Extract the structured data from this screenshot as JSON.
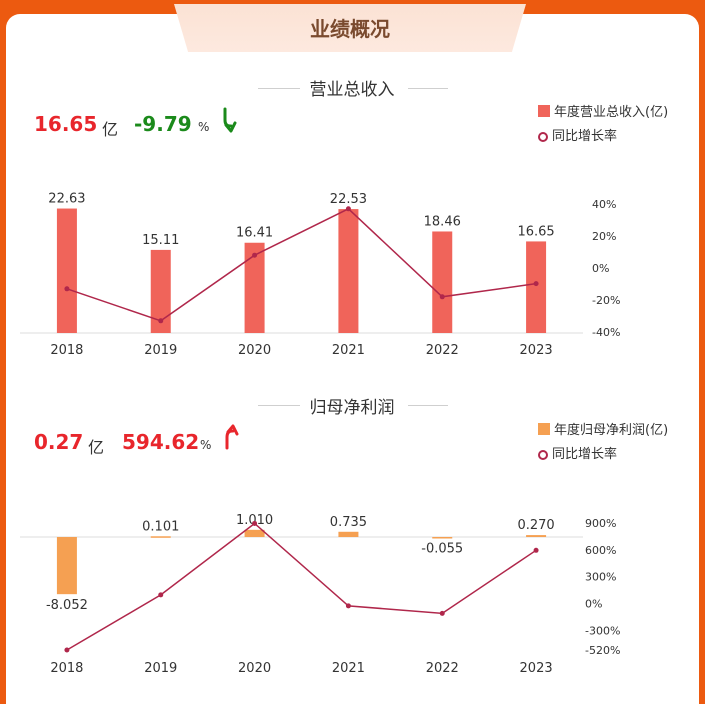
{
  "header": {
    "title": "业绩概况"
  },
  "revenue": {
    "section_title": "营业总收入",
    "value": "16.65",
    "unit": "亿",
    "change": "-9.79",
    "change_unit": "%",
    "legend_bar": "年度营业总收入(亿)",
    "legend_line": "同比增长率"
  },
  "profit": {
    "section_title": "归母净利润",
    "value": "0.27",
    "unit": "亿",
    "change": "594.62",
    "change_unit": "%",
    "legend_bar": "年度归母净利润(亿)",
    "legend_line": "同比增长率"
  },
  "colors": {
    "revenue_bar": "#f0645a",
    "profit_bar": "#f5a052",
    "growth_line": "#b0274b",
    "positive": "#e8262c",
    "negative": "#1b8a1b"
  },
  "chart_data": [
    {
      "type": "bar",
      "categories": [
        "2018",
        "2019",
        "2020",
        "2021",
        "2022",
        "2023"
      ],
      "series": [
        {
          "name": "年度营业总收入(亿)",
          "values": [
            22.63,
            15.11,
            16.41,
            22.53,
            18.46,
            16.65
          ]
        },
        {
          "name": "同比增长率",
          "type": "line",
          "axis": "right",
          "values": [
            -13,
            -33,
            8,
            37,
            -18,
            -9.79
          ]
        }
      ],
      "data_labels": [
        "22.63",
        "15.11",
        "16.41",
        "22.53",
        "18.46",
        "16.65"
      ],
      "ylim": [
        0,
        25
      ],
      "y2lim": [
        -40,
        40
      ],
      "y2_ticks": [
        "40%",
        "20%",
        "0%",
        "-20%",
        "-40%"
      ]
    },
    {
      "type": "bar",
      "categories": [
        "2018",
        "2019",
        "2020",
        "2021",
        "2022",
        "2023"
      ],
      "series": [
        {
          "name": "年度归母净利润(亿)",
          "values": [
            -8.052,
            0.101,
            1.01,
            0.735,
            -0.055,
            0.27
          ]
        },
        {
          "name": "同比增长率",
          "type": "line",
          "axis": "right",
          "values": [
            -520,
            96,
            895,
            -27,
            -110,
            594.62
          ]
        }
      ],
      "data_labels": [
        "-8.052",
        "0.101",
        "1.010",
        "0.735",
        "-0.055",
        "0.270"
      ],
      "ylim": [
        -8.5,
        1.2
      ],
      "y2lim": [
        -520,
        900
      ],
      "y2_ticks": [
        "900%",
        "600%",
        "300%",
        "0%",
        "-300%",
        "-520%"
      ]
    }
  ]
}
